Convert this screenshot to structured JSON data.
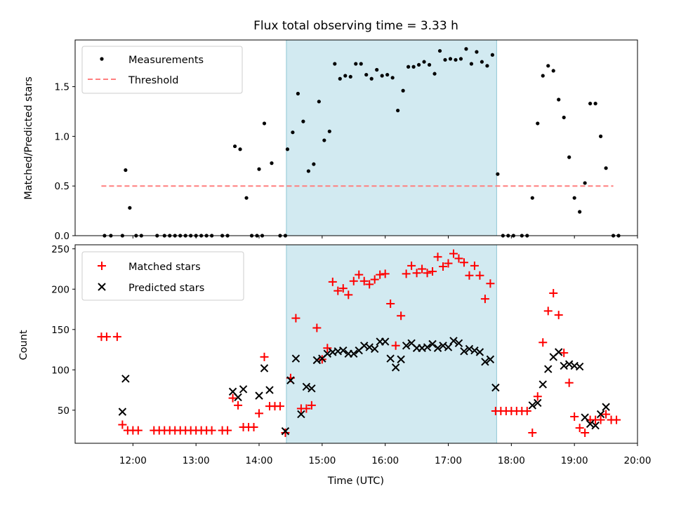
{
  "title": "Flux total observing time = 3.33 h",
  "colors": {
    "shade": "#add8e6",
    "measurement": "#000000",
    "threshold": "#ff7f7f",
    "matched": "#ff0000",
    "predicted": "#000000"
  },
  "chart_data": [
    {
      "type": "scatter",
      "title": "Flux total observing time = 3.33 h",
      "ylabel": "Matched/Predicted stars",
      "xlabel": "",
      "xlim": [
        "11:05",
        "20:00"
      ],
      "ylim": [
        0,
        1.97
      ],
      "yticks": [
        "0.0",
        "0.5",
        "1.0",
        "1.5"
      ],
      "ytick_values": [
        0,
        0.5,
        1.0,
        1.5
      ],
      "grid": false,
      "legend_position": "top-left",
      "shaded_span": [
        "14:26",
        "17:46"
      ],
      "series": [
        {
          "name": "Measurements",
          "marker": "dot",
          "points": [
            [
              "11:33",
              0
            ],
            [
              "11:39",
              0
            ],
            [
              "11:50",
              0
            ],
            [
              "11:53",
              0.66
            ],
            [
              "11:57",
              0.28
            ],
            [
              "12:03",
              0
            ],
            [
              "12:08",
              0
            ],
            [
              "12:23",
              0
            ],
            [
              "12:30",
              0
            ],
            [
              "12:35",
              0
            ],
            [
              "12:40",
              0
            ],
            [
              "12:45",
              0
            ],
            [
              "12:50",
              0
            ],
            [
              "12:55",
              0
            ],
            [
              "13:00",
              0
            ],
            [
              "13:05",
              0
            ],
            [
              "13:10",
              0
            ],
            [
              "13:15",
              0
            ],
            [
              "13:25",
              0
            ],
            [
              "13:30",
              0
            ],
            [
              "13:37",
              0.9
            ],
            [
              "13:42",
              0.87
            ],
            [
              "13:48",
              0.38
            ],
            [
              "13:53",
              0
            ],
            [
              "13:58",
              0
            ],
            [
              "14:03",
              0
            ],
            [
              "14:00",
              0.67
            ],
            [
              "14:05",
              1.13
            ],
            [
              "14:12",
              0.73
            ],
            [
              "14:20",
              0
            ],
            [
              "14:25",
              0
            ],
            [
              "14:27",
              0.87
            ],
            [
              "14:32",
              1.04
            ],
            [
              "14:37",
              1.43
            ],
            [
              "14:42",
              1.15
            ],
            [
              "14:47",
              0.65
            ],
            [
              "14:52",
              0.72
            ],
            [
              "14:57",
              1.35
            ],
            [
              "15:02",
              0.96
            ],
            [
              "15:07",
              1.05
            ],
            [
              "15:12",
              1.73
            ],
            [
              "15:17",
              1.58
            ],
            [
              "15:22",
              1.61
            ],
            [
              "15:27",
              1.6
            ],
            [
              "15:32",
              1.73
            ],
            [
              "15:37",
              1.73
            ],
            [
              "15:42",
              1.62
            ],
            [
              "15:47",
              1.58
            ],
            [
              "15:52",
              1.67
            ],
            [
              "15:57",
              1.61
            ],
            [
              "16:02",
              1.62
            ],
            [
              "16:07",
              1.59
            ],
            [
              "16:12",
              1.26
            ],
            [
              "16:17",
              1.46
            ],
            [
              "16:22",
              1.7
            ],
            [
              "16:27",
              1.7
            ],
            [
              "16:32",
              1.72
            ],
            [
              "16:37",
              1.75
            ],
            [
              "16:42",
              1.72
            ],
            [
              "16:47",
              1.63
            ],
            [
              "16:52",
              1.86
            ],
            [
              "16:57",
              1.77
            ],
            [
              "17:02",
              1.78
            ],
            [
              "17:07",
              1.77
            ],
            [
              "17:12",
              1.78
            ],
            [
              "17:17",
              1.88
            ],
            [
              "17:22",
              1.73
            ],
            [
              "17:27",
              1.85
            ],
            [
              "17:32",
              1.75
            ],
            [
              "17:37",
              1.71
            ],
            [
              "17:42",
              1.82
            ],
            [
              "17:47",
              0.62
            ],
            [
              "17:52",
              0
            ],
            [
              "17:57",
              0
            ],
            [
              "18:02",
              0
            ],
            [
              "18:10",
              0
            ],
            [
              "18:15",
              0
            ],
            [
              "18:20",
              0.38
            ],
            [
              "18:25",
              1.13
            ],
            [
              "18:30",
              1.61
            ],
            [
              "18:35",
              1.71
            ],
            [
              "18:40",
              1.66
            ],
            [
              "18:45",
              1.37
            ],
            [
              "18:50",
              1.19
            ],
            [
              "18:55",
              0.79
            ],
            [
              "19:00",
              0.38
            ],
            [
              "19:05",
              0.24
            ],
            [
              "19:10",
              0.53
            ],
            [
              "19:15",
              1.33
            ],
            [
              "19:20",
              1.33
            ],
            [
              "19:25",
              1.0
            ],
            [
              "19:30",
              0.68
            ],
            [
              "19:37",
              0
            ],
            [
              "19:42",
              0
            ]
          ]
        },
        {
          "name": "Threshold",
          "marker": "dashed-line",
          "points": [
            [
              "11:30",
              0.5
            ],
            [
              "19:37",
              0.5
            ]
          ]
        }
      ]
    },
    {
      "type": "scatter",
      "xlabel": "Time (UTC)",
      "ylabel": "Count",
      "xlim": [
        "11:05",
        "20:00"
      ],
      "ylim": [
        9,
        255
      ],
      "xticks": [
        "12:00",
        "13:00",
        "14:00",
        "15:00",
        "16:00",
        "17:00",
        "18:00",
        "19:00",
        "20:00"
      ],
      "yticks": [
        "50",
        "100",
        "150",
        "200",
        "250"
      ],
      "ytick_values": [
        50,
        100,
        150,
        200,
        250
      ],
      "grid": false,
      "legend_position": "top-left",
      "shaded_span": [
        "14:26",
        "17:46"
      ],
      "series": [
        {
          "name": "Matched stars",
          "marker": "plus",
          "points": [
            [
              "11:30",
              141
            ],
            [
              "11:35",
              141
            ],
            [
              "11:45",
              141
            ],
            [
              "11:50",
              32
            ],
            [
              "11:55",
              25
            ],
            [
              "12:00",
              25
            ],
            [
              "12:05",
              25
            ],
            [
              "12:20",
              25
            ],
            [
              "12:25",
              25
            ],
            [
              "12:30",
              25
            ],
            [
              "12:35",
              25
            ],
            [
              "12:40",
              25
            ],
            [
              "12:45",
              25
            ],
            [
              "12:50",
              25
            ],
            [
              "12:55",
              25
            ],
            [
              "13:00",
              25
            ],
            [
              "13:05",
              25
            ],
            [
              "13:10",
              25
            ],
            [
              "13:15",
              25
            ],
            [
              "13:25",
              25
            ],
            [
              "13:30",
              25
            ],
            [
              "13:35",
              65
            ],
            [
              "13:40",
              56
            ],
            [
              "13:45",
              29
            ],
            [
              "13:50",
              29
            ],
            [
              "13:55",
              29
            ],
            [
              "14:00",
              46
            ],
            [
              "14:05",
              116
            ],
            [
              "14:10",
              55
            ],
            [
              "14:15",
              55
            ],
            [
              "14:20",
              55
            ],
            [
              "14:25",
              22
            ],
            [
              "14:30",
              90
            ],
            [
              "14:35",
              164
            ],
            [
              "14:40",
              52
            ],
            [
              "14:45",
              52
            ],
            [
              "14:50",
              56
            ],
            [
              "14:55",
              152
            ],
            [
              "15:00",
              113
            ],
            [
              "15:05",
              127
            ],
            [
              "15:10",
              209
            ],
            [
              "15:15",
              198
            ],
            [
              "15:20",
              201
            ],
            [
              "15:25",
              193
            ],
            [
              "15:30",
              210
            ],
            [
              "15:35",
              218
            ],
            [
              "15:40",
              210
            ],
            [
              "15:45",
              206
            ],
            [
              "15:50",
              212
            ],
            [
              "15:55",
              218
            ],
            [
              "16:00",
              219
            ],
            [
              "16:05",
              182
            ],
            [
              "16:10",
              130
            ],
            [
              "16:15",
              167
            ],
            [
              "16:20",
              219
            ],
            [
              "16:25",
              229
            ],
            [
              "16:30",
              220
            ],
            [
              "16:35",
              225
            ],
            [
              "16:40",
              220
            ],
            [
              "16:45",
              222
            ],
            [
              "16:50",
              240
            ],
            [
              "16:55",
              228
            ],
            [
              "17:00",
              232
            ],
            [
              "17:05",
              244
            ],
            [
              "17:10",
              238
            ],
            [
              "17:15",
              233
            ],
            [
              "17:20",
              217
            ],
            [
              "17:25",
              229
            ],
            [
              "17:30",
              217
            ],
            [
              "17:35",
              188
            ],
            [
              "17:40",
              207
            ],
            [
              "17:45",
              49
            ],
            [
              "17:50",
              49
            ],
            [
              "17:55",
              49
            ],
            [
              "18:00",
              49
            ],
            [
              "18:05",
              49
            ],
            [
              "18:10",
              49
            ],
            [
              "18:15",
              49
            ],
            [
              "18:20",
              22
            ],
            [
              "18:25",
              67
            ],
            [
              "18:30",
              134
            ],
            [
              "18:35",
              173
            ],
            [
              "18:40",
              195
            ],
            [
              "18:45",
              168
            ],
            [
              "18:50",
              121
            ],
            [
              "18:55",
              84
            ],
            [
              "19:00",
              42
            ],
            [
              "19:05",
              28
            ],
            [
              "19:10",
              22
            ],
            [
              "19:15",
              38
            ],
            [
              "19:20",
              38
            ],
            [
              "19:25",
              38
            ],
            [
              "19:30",
              45
            ],
            [
              "19:35",
              38
            ],
            [
              "19:40",
              38
            ]
          ]
        },
        {
          "name": "Predicted stars",
          "marker": "x",
          "points": [
            [
              "11:50",
              48
            ],
            [
              "11:53",
              89
            ],
            [
              "13:35",
              73
            ],
            [
              "13:40",
              66
            ],
            [
              "13:45",
              76
            ],
            [
              "14:00",
              68
            ],
            [
              "14:05",
              102
            ],
            [
              "14:10",
              75
            ],
            [
              "14:25",
              24
            ],
            [
              "14:30",
              87
            ],
            [
              "14:35",
              114
            ],
            [
              "14:40",
              45
            ],
            [
              "14:45",
              79
            ],
            [
              "14:50",
              77
            ],
            [
              "14:55",
              112
            ],
            [
              "15:00",
              114
            ],
            [
              "15:05",
              120
            ],
            [
              "15:10",
              122
            ],
            [
              "15:15",
              123
            ],
            [
              "15:20",
              124
            ],
            [
              "15:25",
              120
            ],
            [
              "15:30",
              120
            ],
            [
              "15:35",
              124
            ],
            [
              "15:40",
              130
            ],
            [
              "15:45",
              128
            ],
            [
              "15:50",
              126
            ],
            [
              "15:55",
              135
            ],
            [
              "16:00",
              135
            ],
            [
              "16:05",
              114
            ],
            [
              "16:10",
              103
            ],
            [
              "16:15",
              113
            ],
            [
              "16:20",
              130
            ],
            [
              "16:25",
              133
            ],
            [
              "16:30",
              127
            ],
            [
              "16:35",
              127
            ],
            [
              "16:40",
              128
            ],
            [
              "16:45",
              132
            ],
            [
              "16:50",
              127
            ],
            [
              "16:55",
              130
            ],
            [
              "17:00",
              128
            ],
            [
              "17:05",
              136
            ],
            [
              "17:10",
              133
            ],
            [
              "17:15",
              123
            ],
            [
              "17:20",
              126
            ],
            [
              "17:25",
              124
            ],
            [
              "17:30",
              122
            ],
            [
              "17:35",
              110
            ],
            [
              "17:40",
              113
            ],
            [
              "17:45",
              78
            ],
            [
              "18:20",
              56
            ],
            [
              "18:25",
              59
            ],
            [
              "18:30",
              82
            ],
            [
              "18:35",
              101
            ],
            [
              "18:40",
              116
            ],
            [
              "18:45",
              122
            ],
            [
              "18:50",
              105
            ],
            [
              "18:55",
              107
            ],
            [
              "19:00",
              105
            ],
            [
              "19:05",
              104
            ],
            [
              "19:10",
              41
            ],
            [
              "19:15",
              33
            ],
            [
              "19:20",
              31
            ],
            [
              "19:25",
              45
            ],
            [
              "19:30",
              54
            ]
          ]
        }
      ]
    }
  ]
}
